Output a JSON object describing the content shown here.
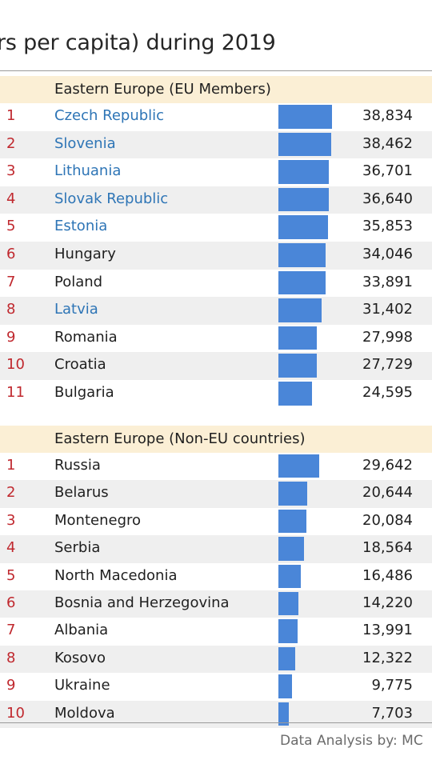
{
  "title": "rs per capita) during 2019",
  "credit": "Data Analysis by: MC",
  "colors": {
    "bar": "#4a86d8",
    "rank": "#c0282e",
    "link": "#2e75b6",
    "header_bg": "#fbefd5",
    "stripe": "#efefef"
  },
  "chart_data": [
    {
      "type": "bar",
      "orientation": "horizontal",
      "title": "Eastern Europe (EU Members)",
      "ranks": [
        "1",
        "2",
        "3",
        "4",
        "5",
        "6",
        "7",
        "8",
        "9",
        "10",
        "11"
      ],
      "categories": [
        "Czech Republic",
        "Slovenia",
        "Lithuania",
        "Slovak Republic",
        "Estonia",
        "Hungary",
        "Poland",
        "Latvia",
        "Romania",
        "Croatia",
        "Bulgaria"
      ],
      "values": [
        38834,
        38462,
        36701,
        36640,
        35853,
        34046,
        33891,
        31402,
        27998,
        27729,
        24595
      ],
      "value_labels": [
        "38,834",
        "38,462",
        "36,701",
        "36,640",
        "35,853",
        "34,046",
        "33,891",
        "31,402",
        "27,998",
        "27,729",
        "24,595"
      ],
      "highlighted": [
        true,
        true,
        true,
        true,
        true,
        false,
        false,
        true,
        false,
        false,
        false
      ],
      "xlim": [
        0,
        38834
      ]
    },
    {
      "type": "bar",
      "orientation": "horizontal",
      "title": "Eastern Europe (Non-EU countries)",
      "ranks": [
        "1",
        "2",
        "3",
        "4",
        "5",
        "6",
        "7",
        "8",
        "9",
        "10"
      ],
      "categories": [
        "Russia",
        "Belarus",
        "Montenegro",
        "Serbia",
        "North Macedonia",
        "Bosnia and Herzegovina",
        "Albania",
        "Kosovo",
        "Ukraine",
        "Moldova"
      ],
      "values": [
        29642,
        20644,
        20084,
        18564,
        16486,
        14220,
        13991,
        12322,
        9775,
        7703
      ],
      "value_labels": [
        "29,642",
        "20,644",
        "20,084",
        "18,564",
        "16,486",
        "14,220",
        "13,991",
        "12,322",
        "9,775",
        "7,703"
      ],
      "highlighted": [
        false,
        false,
        false,
        false,
        false,
        false,
        false,
        false,
        false,
        false
      ],
      "xlim": [
        0,
        38834
      ]
    }
  ]
}
